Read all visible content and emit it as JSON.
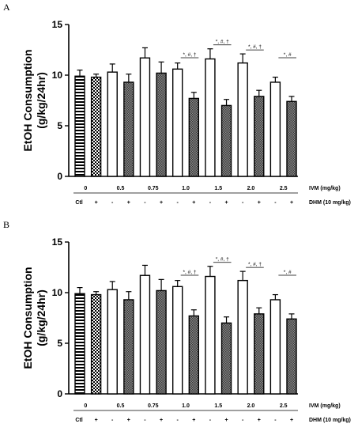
{
  "chart_data": [
    {
      "type": "bar",
      "panel": "A",
      "ylabel_line1": "EtOH Consumption",
      "ylabel_line2": "(g/kg/24hr)",
      "ylim": [
        0,
        15
      ],
      "yticks": [
        "0",
        "5",
        "10",
        "15"
      ],
      "dose_labels": [
        "0",
        "0.5",
        "0.75",
        "1.0",
        "1.5",
        "2.0",
        "2.5"
      ],
      "ivm_label": "IVM (mg/kg)",
      "dhm_label": "DHM (10 mg/kg)",
      "ctl_label": "Ctl",
      "dhm_marks": [
        "+",
        "-",
        "+",
        "-",
        "+",
        "-",
        "+",
        "-",
        "+",
        "-",
        "+",
        "-",
        "+"
      ],
      "bars": [
        {
          "value": 9.9,
          "err": 0.6,
          "pattern": "hstripe"
        },
        {
          "value": 9.8,
          "err": 0.3,
          "pattern": "checker"
        },
        {
          "value": 10.3,
          "err": 0.8,
          "pattern": "white"
        },
        {
          "value": 9.3,
          "err": 0.8,
          "pattern": "gray"
        },
        {
          "value": 11.7,
          "err": 1.0,
          "pattern": "white"
        },
        {
          "value": 10.2,
          "err": 1.1,
          "pattern": "gray"
        },
        {
          "value": 10.6,
          "err": 0.6,
          "pattern": "white"
        },
        {
          "value": 7.7,
          "err": 0.6,
          "pattern": "gray"
        },
        {
          "value": 11.6,
          "err": 1.0,
          "pattern": "white"
        },
        {
          "value": 7.0,
          "err": 0.6,
          "pattern": "gray"
        },
        {
          "value": 11.2,
          "err": 0.9,
          "pattern": "white"
        },
        {
          "value": 7.9,
          "err": 0.6,
          "pattern": "gray"
        },
        {
          "value": 9.3,
          "err": 0.5,
          "pattern": "white"
        },
        {
          "value": 7.4,
          "err": 0.5,
          "pattern": "gray"
        }
      ],
      "significance": [
        {
          "pair": [
            6,
            7
          ],
          "label": "*, #, †"
        },
        {
          "pair": [
            8,
            9
          ],
          "label": "*, #, †"
        },
        {
          "pair": [
            10,
            11
          ],
          "label": "*, #, †"
        },
        {
          "pair": [
            12,
            13
          ],
          "label": "*, #"
        }
      ]
    },
    {
      "type": "bar",
      "panel": "B",
      "ylabel_line1": "EtOH Consumption",
      "ylabel_line2": "(g/kg/24hr)",
      "ylim": [
        0,
        15
      ],
      "yticks": [
        "0",
        "5",
        "10",
        "15"
      ],
      "dose_labels": [
        "0",
        "0.5",
        "0.75",
        "1.0",
        "1.5",
        "2.0",
        "2.5"
      ],
      "ivm_label": "IVM (mg/kg)",
      "dhm_label": "DHM (10 mg/kg)",
      "ctl_label": "Ctl",
      "dhm_marks": [
        "+",
        "-",
        "+",
        "-",
        "+",
        "-",
        "+",
        "-",
        "+",
        "-",
        "+",
        "-",
        "+"
      ],
      "bars": [
        {
          "value": 9.9,
          "err": 0.6,
          "pattern": "hstripe"
        },
        {
          "value": 9.8,
          "err": 0.3,
          "pattern": "checker"
        },
        {
          "value": 10.3,
          "err": 0.8,
          "pattern": "white"
        },
        {
          "value": 9.3,
          "err": 0.8,
          "pattern": "gray"
        },
        {
          "value": 11.7,
          "err": 1.0,
          "pattern": "white"
        },
        {
          "value": 10.2,
          "err": 1.1,
          "pattern": "gray"
        },
        {
          "value": 10.6,
          "err": 0.6,
          "pattern": "white"
        },
        {
          "value": 7.7,
          "err": 0.6,
          "pattern": "gray"
        },
        {
          "value": 11.6,
          "err": 1.0,
          "pattern": "white"
        },
        {
          "value": 7.0,
          "err": 0.6,
          "pattern": "gray"
        },
        {
          "value": 11.2,
          "err": 0.9,
          "pattern": "white"
        },
        {
          "value": 7.9,
          "err": 0.6,
          "pattern": "gray"
        },
        {
          "value": 9.3,
          "err": 0.5,
          "pattern": "white"
        },
        {
          "value": 7.4,
          "err": 0.5,
          "pattern": "gray"
        }
      ],
      "significance": [
        {
          "pair": [
            6,
            7
          ],
          "label": "*, #, †"
        },
        {
          "pair": [
            8,
            9
          ],
          "label": "*, #, †"
        },
        {
          "pair": [
            10,
            11
          ],
          "label": "*, #, †"
        },
        {
          "pair": [
            12,
            13
          ],
          "label": "*, #"
        }
      ]
    }
  ]
}
